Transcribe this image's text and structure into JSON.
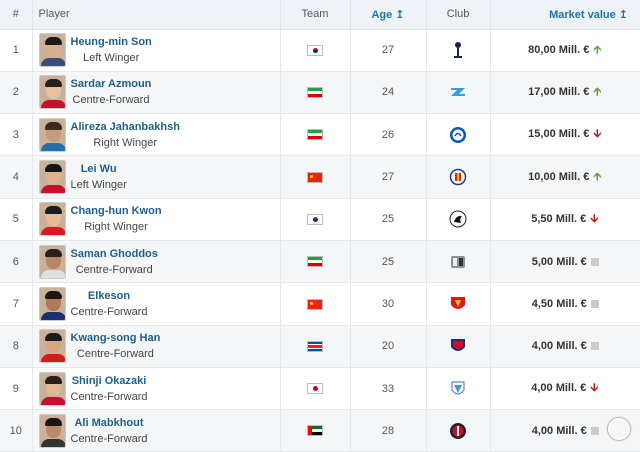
{
  "header": {
    "rank": "#",
    "player": "Player",
    "team": "Team",
    "age": "Age ↥",
    "club": "Club",
    "value": "Market value ↥"
  },
  "rows": [
    {
      "rank": "1",
      "name": "Heung-min Son",
      "position": "Left Winger",
      "team_flag": "south-korea",
      "age": "27",
      "club_icon": "tottenham-crest",
      "value": "80,00 Mill. €",
      "trend": "up"
    },
    {
      "rank": "2",
      "name": "Sardar Azmoun",
      "position": "Centre-Forward",
      "team_flag": "iran",
      "age": "24",
      "club_icon": "zenit-crest",
      "value": "17,00 Mill. €",
      "trend": "up"
    },
    {
      "rank": "3",
      "name": "Alireza Jahanbakhsh",
      "position": "Right Winger",
      "team_flag": "iran",
      "age": "26",
      "club_icon": "brighton-crest",
      "value": "15,00 Mill. €",
      "trend": "down"
    },
    {
      "rank": "4",
      "name": "Lei Wu",
      "position": "Left Winger",
      "team_flag": "china",
      "age": "27",
      "club_icon": "espanyol-crest",
      "value": "10,00 Mill. €",
      "trend": "up"
    },
    {
      "rank": "5",
      "name": "Chang-hun Kwon",
      "position": "Right Winger",
      "team_flag": "south-korea",
      "age": "25",
      "club_icon": "freiburg-crest",
      "value": "5,50 Mill. €",
      "trend": "down"
    },
    {
      "rank": "6",
      "name": "Saman Ghoddos",
      "position": "Centre-Forward",
      "team_flag": "iran",
      "age": "25",
      "club_icon": "amiens-crest",
      "value": "5,00 Mill. €",
      "trend": "same"
    },
    {
      "rank": "7",
      "name": "Elkeson",
      "position": "Centre-Forward",
      "team_flag": "china",
      "age": "30",
      "club_icon": "guangzhou-crest",
      "value": "4,50 Mill. €",
      "trend": "same"
    },
    {
      "rank": "8",
      "name": "Kwang-song Han",
      "position": "Centre-Forward",
      "team_flag": "north-korea",
      "age": "20",
      "club_icon": "cagliari-crest",
      "value": "4,00 Mill. €",
      "trend": "same"
    },
    {
      "rank": "9",
      "name": "Shinji Okazaki",
      "position": "Centre-Forward",
      "team_flag": "japan",
      "age": "33",
      "club_icon": "malaga-crest",
      "value": "4,00 Mill. €",
      "trend": "down"
    },
    {
      "rank": "10",
      "name": "Ali Mabkhout",
      "position": "Centre-Forward",
      "team_flag": "uae",
      "age": "28",
      "club_icon": "al-jazira-crest",
      "value": "4,00 Mill. €",
      "trend": "same"
    }
  ],
  "colors": {
    "link": "#1d5f8a",
    "up": "#5a9e2f",
    "down": "#b8151a",
    "header_bg": "#eef1f5"
  }
}
